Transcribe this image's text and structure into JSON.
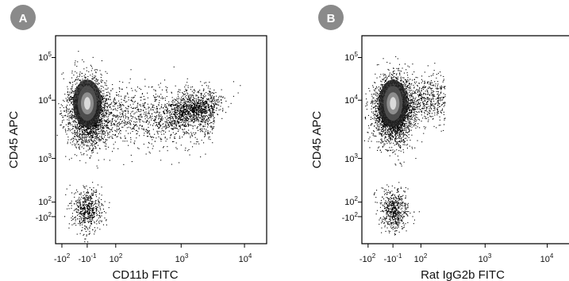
{
  "chart_data": [
    {
      "type": "scatter",
      "panel_label": "A",
      "xlabel": "CD11b FITC",
      "ylabel": "CD45 APC",
      "x_scale": "biexponential",
      "y_scale": "biexponential",
      "x_ticks": [
        {
          "base": "-10",
          "exp": "2"
        },
        {
          "base": "-10",
          "exp": "-1"
        },
        {
          "base": "10",
          "exp": "2"
        },
        {
          "base": "10",
          "exp": "3"
        },
        {
          "base": "10",
          "exp": "4"
        }
      ],
      "y_ticks": [
        {
          "base": "10",
          "exp": "5"
        },
        {
          "base": "10",
          "exp": "4"
        },
        {
          "base": "10",
          "exp": "3"
        },
        {
          "base": "10",
          "exp": "2"
        },
        {
          "base": "-10",
          "exp": "2"
        }
      ],
      "populations": [
        {
          "name": "CD45 high, CD11b negative",
          "x_center": 0,
          "y_center": 10000,
          "relative_density": 1.0
        },
        {
          "name": "CD45 high, CD11b positive",
          "x_center": 1500,
          "y_center": 7000,
          "relative_density": 0.25
        },
        {
          "name": "CD45 negative",
          "x_center": 0,
          "y_center": 0,
          "relative_density": 0.15
        }
      ]
    },
    {
      "type": "scatter",
      "panel_label": "B",
      "xlabel": "Rat IgG2b FITC",
      "ylabel": "CD45 APC",
      "x_scale": "biexponential",
      "y_scale": "biexponential",
      "x_ticks": [
        {
          "base": "-10",
          "exp": "2"
        },
        {
          "base": "-10",
          "exp": "-1"
        },
        {
          "base": "10",
          "exp": "2"
        },
        {
          "base": "10",
          "exp": "3"
        },
        {
          "base": "10",
          "exp": "4"
        }
      ],
      "y_ticks": [
        {
          "base": "10",
          "exp": "5"
        },
        {
          "base": "10",
          "exp": "4"
        },
        {
          "base": "10",
          "exp": "3"
        },
        {
          "base": "10",
          "exp": "2"
        },
        {
          "base": "-10",
          "exp": "2"
        }
      ],
      "populations": [
        {
          "name": "CD45 high",
          "x_center": 0,
          "y_center": 10000,
          "relative_density": 1.0
        },
        {
          "name": "CD45 negative",
          "x_center": 0,
          "y_center": 0,
          "relative_density": 0.15
        }
      ]
    }
  ],
  "colors": {
    "badge_fill": "#8a8a8a",
    "badge_text": "#ffffff",
    "dots": "#000000",
    "axis": "#000000"
  }
}
